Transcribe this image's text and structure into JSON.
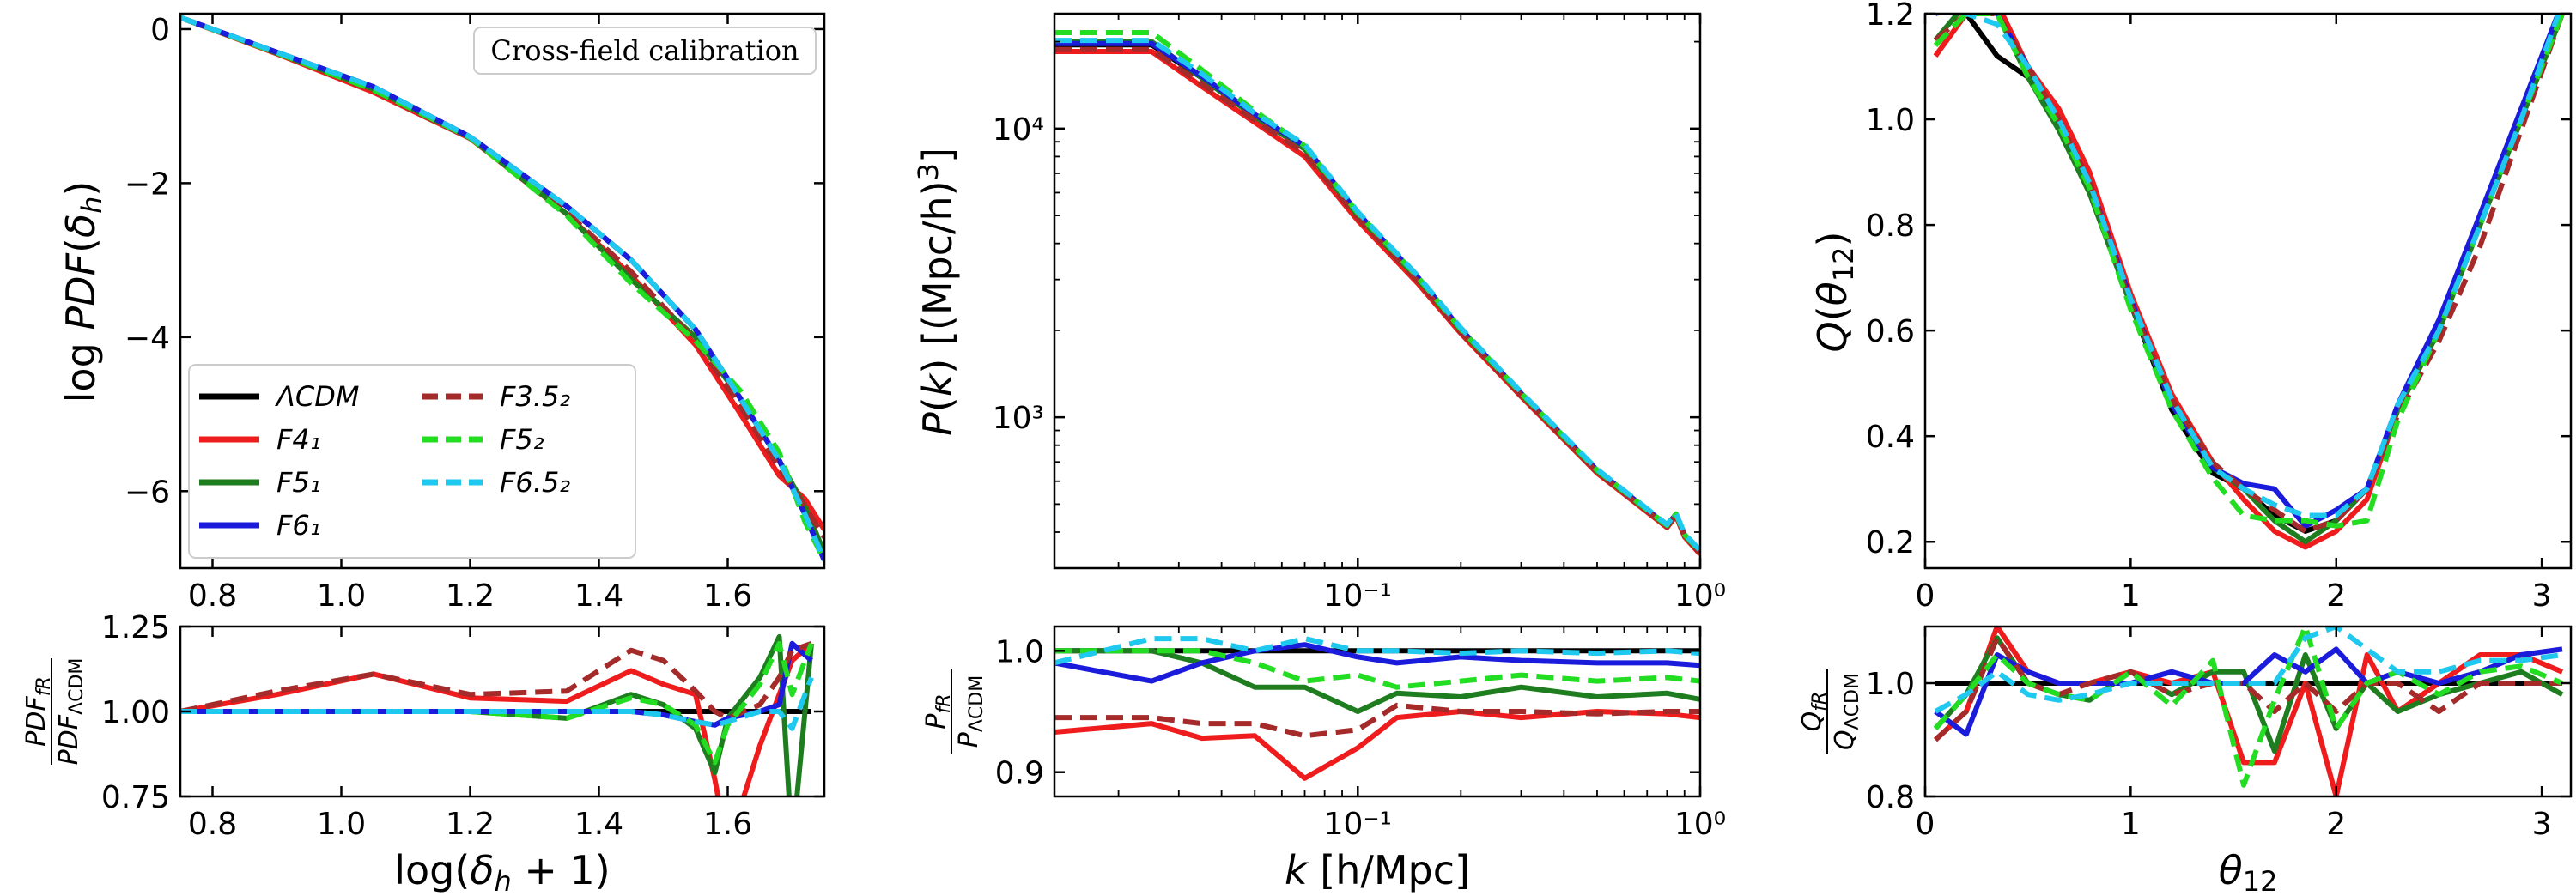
{
  "colors": {
    "LCDM": "#000000",
    "F4_1": "#ee1c1c",
    "F5_1": "#1e7d1e",
    "F6_1": "#1b1bdc",
    "F3.5_2": "#a52a2a",
    "F5_2": "#22dd22",
    "F6.5_2": "#1fc8ee"
  },
  "legend": {
    "items": [
      {
        "key": "LCDM",
        "label": "ΛCDM",
        "dash": false
      },
      {
        "key": "F4_1",
        "label": "F4₁",
        "dash": false
      },
      {
        "key": "F5_1",
        "label": "F5₁",
        "dash": false
      },
      {
        "key": "F6_1",
        "label": "F6₁",
        "dash": false
      },
      {
        "key": "F3.5_2",
        "label": "F3.5₂",
        "dash": true
      },
      {
        "key": "F5_2",
        "label": "F5₂",
        "dash": true
      },
      {
        "key": "F6.5_2",
        "label": "F6.5₂",
        "dash": true
      }
    ]
  },
  "annotation": "Cross-field calibration",
  "chart_data": [
    {
      "id": "pdf",
      "type": "line",
      "ylabel": "log PDF(δ_h)",
      "xlim": [
        0.75,
        1.75
      ],
      "ylim": [
        -7.0,
        0.2
      ],
      "xticks": [
        0.8,
        1.0,
        1.2,
        1.4,
        1.6
      ],
      "xticklabels": [
        "0.8",
        "1.0",
        "1.2",
        "1.4",
        "1.6"
      ],
      "yticks": [
        0,
        -2,
        -4,
        -6
      ],
      "yticklabels": [
        "0",
        "−2",
        "−4",
        "−6"
      ],
      "x": [
        0.75,
        0.9,
        1.05,
        1.2,
        1.35,
        1.45,
        1.55,
        1.62,
        1.68,
        1.72,
        1.75
      ],
      "series": [
        {
          "key": "LCDM",
          "values": [
            0.15,
            -0.3,
            -0.75,
            -1.4,
            -2.3,
            -3.0,
            -3.9,
            -4.8,
            -5.6,
            -6.3,
            -6.9
          ]
        },
        {
          "key": "F4_1",
          "values": [
            0.15,
            -0.32,
            -0.82,
            -1.42,
            -2.4,
            -3.2,
            -4.1,
            -5.0,
            -5.8,
            -6.1,
            -6.5
          ]
        },
        {
          "key": "F5_1",
          "values": [
            0.15,
            -0.31,
            -0.78,
            -1.41,
            -2.4,
            -3.25,
            -4.0,
            -4.8,
            -5.6,
            -6.2,
            -6.8
          ]
        },
        {
          "key": "F6_1",
          "values": [
            0.15,
            -0.3,
            -0.75,
            -1.4,
            -2.3,
            -3.0,
            -3.9,
            -4.8,
            -5.6,
            -6.3,
            -6.9
          ]
        },
        {
          "key": "F3.5_2",
          "values": [
            0.15,
            -0.31,
            -0.8,
            -1.42,
            -2.38,
            -3.15,
            -4.05,
            -4.9,
            -5.7,
            -6.2,
            -6.6
          ]
        },
        {
          "key": "F5_2",
          "values": [
            0.15,
            -0.31,
            -0.79,
            -1.41,
            -2.42,
            -3.3,
            -4.05,
            -4.7,
            -5.5,
            -6.4,
            -6.9
          ]
        },
        {
          "key": "F6.5_2",
          "values": [
            0.15,
            -0.3,
            -0.75,
            -1.4,
            -2.3,
            -3.0,
            -3.9,
            -4.8,
            -5.6,
            -6.3,
            -6.9
          ]
        }
      ]
    },
    {
      "id": "pdf_ratio",
      "type": "line",
      "ylabel": "PDF_fR / PDF_ΛCDM",
      "xlabel": "log(δ_h + 1)",
      "xlim": [
        0.75,
        1.75
      ],
      "ylim": [
        0.75,
        1.25
      ],
      "xticks": [
        0.8,
        1.0,
        1.2,
        1.4,
        1.6
      ],
      "xticklabels": [
        "0.8",
        "1.0",
        "1.2",
        "1.4",
        "1.6"
      ],
      "yticks": [
        0.75,
        1.0,
        1.25
      ],
      "yticklabels": [
        "0.75",
        "1.00",
        "1.25"
      ],
      "x": [
        0.75,
        0.9,
        1.05,
        1.2,
        1.35,
        1.45,
        1.5,
        1.55,
        1.58,
        1.6,
        1.65,
        1.68,
        1.7,
        1.73
      ],
      "series": [
        {
          "key": "LCDM",
          "values": [
            1,
            1,
            1,
            1,
            1,
            1,
            1,
            1,
            1,
            1,
            1,
            1,
            1,
            1
          ]
        },
        {
          "key": "F4_1",
          "values": [
            1.0,
            1.05,
            1.11,
            1.04,
            1.03,
            1.12,
            1.08,
            1.05,
            0.8,
            0.6,
            0.9,
            1.05,
            1.15,
            1.2
          ]
        },
        {
          "key": "F5_1",
          "values": [
            1.0,
            1.0,
            1.0,
            1.0,
            0.98,
            1.05,
            1.02,
            0.95,
            0.82,
            0.98,
            1.1,
            1.22,
            0.6,
            1.2
          ]
        },
        {
          "key": "F6_1",
          "values": [
            1.0,
            1.0,
            1.0,
            1.0,
            1.0,
            1.0,
            0.99,
            0.97,
            0.96,
            0.98,
            1.0,
            1.02,
            1.2,
            1.15
          ]
        },
        {
          "key": "F3.5_2",
          "values": [
            1.0,
            1.06,
            1.11,
            1.05,
            1.06,
            1.18,
            1.15,
            1.06,
            1.0,
            0.98,
            1.02,
            1.1,
            1.18,
            1.2
          ]
        },
        {
          "key": "F5_2",
          "values": [
            1.0,
            1.0,
            1.0,
            1.0,
            0.98,
            1.04,
            1.02,
            0.96,
            0.85,
            0.96,
            1.08,
            1.2,
            1.05,
            1.2
          ]
        },
        {
          "key": "F6.5_2",
          "values": [
            1.0,
            1.0,
            1.0,
            1.0,
            1.0,
            1.0,
            0.99,
            0.97,
            0.96,
            0.97,
            1.0,
            1.0,
            0.95,
            1.1
          ]
        }
      ]
    },
    {
      "id": "pk",
      "type": "line",
      "ylabel": "P(k) [(Mpc/h)³]",
      "xscale": "log",
      "yscale": "log",
      "xlim": [
        0.013,
        1.0
      ],
      "ylim": [
        300,
        25000
      ],
      "xticks": [
        0.1,
        1.0
      ],
      "xticklabels": [
        "10⁻¹",
        "10⁰"
      ],
      "yticks": [
        1000,
        10000
      ],
      "yticklabels": [
        "10³",
        "10⁴"
      ],
      "x": [
        0.013,
        0.025,
        0.035,
        0.05,
        0.07,
        0.1,
        0.15,
        0.2,
        0.3,
        0.5,
        0.8,
        0.85,
        0.9,
        1.0
      ],
      "series": [
        {
          "key": "LCDM",
          "values": [
            19500,
            19500,
            15000,
            11000,
            8500,
            5000,
            3000,
            2000,
            1200,
            650,
            420,
            460,
            390,
            340
          ]
        },
        {
          "key": "F4_1",
          "values": [
            18500,
            18500,
            14000,
            10500,
            8000,
            4800,
            2900,
            1950,
            1180,
            640,
            415,
            455,
            385,
            335
          ]
        },
        {
          "key": "F5_1",
          "values": [
            20000,
            20000,
            15000,
            11000,
            8500,
            5000,
            3000,
            2000,
            1200,
            650,
            420,
            460,
            390,
            340
          ]
        },
        {
          "key": "F6_1",
          "values": [
            19700,
            19700,
            15200,
            11200,
            8700,
            5100,
            3050,
            2020,
            1210,
            655,
            422,
            462,
            392,
            342
          ]
        },
        {
          "key": "F3.5_2",
          "values": [
            18800,
            18800,
            14300,
            10700,
            8200,
            4900,
            2950,
            1970,
            1190,
            645,
            418,
            458,
            388,
            338
          ]
        },
        {
          "key": "F5_2",
          "values": [
            21500,
            21500,
            16000,
            11500,
            8700,
            5100,
            3050,
            2020,
            1210,
            655,
            422,
            462,
            392,
            342
          ]
        },
        {
          "key": "F6.5_2",
          "values": [
            20200,
            20200,
            15500,
            11300,
            8800,
            5150,
            3080,
            2040,
            1220,
            660,
            425,
            465,
            395,
            345
          ]
        }
      ]
    },
    {
      "id": "pk_ratio",
      "type": "line",
      "ylabel": "P_fR / P_ΛCDM",
      "xlabel": "k [h/Mpc]",
      "xscale": "log",
      "xlim": [
        0.013,
        1.0
      ],
      "ylim": [
        0.88,
        1.02
      ],
      "xticks": [
        0.1,
        1.0
      ],
      "xticklabels": [
        "10⁻¹",
        "10⁰"
      ],
      "yticks": [
        0.9,
        1.0
      ],
      "yticklabels": [
        "0.9",
        "1.0"
      ],
      "x": [
        0.013,
        0.025,
        0.035,
        0.05,
        0.07,
        0.1,
        0.13,
        0.2,
        0.3,
        0.5,
        0.8,
        1.0
      ],
      "series": [
        {
          "key": "LCDM",
          "values": [
            1,
            1,
            1,
            1,
            1,
            1,
            1,
            1,
            1,
            1,
            1,
            1
          ]
        },
        {
          "key": "F4_1",
          "values": [
            0.933,
            0.94,
            0.928,
            0.93,
            0.895,
            0.92,
            0.945,
            0.95,
            0.945,
            0.95,
            0.948,
            0.945
          ]
        },
        {
          "key": "F5_1",
          "values": [
            1.0,
            1.0,
            0.99,
            0.97,
            0.97,
            0.95,
            0.965,
            0.962,
            0.97,
            0.962,
            0.965,
            0.96
          ]
        },
        {
          "key": "F6_1",
          "values": [
            0.99,
            0.975,
            0.99,
            1.0,
            1.005,
            0.995,
            0.99,
            0.995,
            0.992,
            0.99,
            0.99,
            0.988
          ]
        },
        {
          "key": "F3.5_2",
          "values": [
            0.945,
            0.945,
            0.94,
            0.94,
            0.93,
            0.935,
            0.955,
            0.95,
            0.95,
            0.948,
            0.95,
            0.95
          ]
        },
        {
          "key": "F5_2",
          "values": [
            1.0,
            1.0,
            1.0,
            0.99,
            0.975,
            0.98,
            0.97,
            0.975,
            0.98,
            0.975,
            0.978,
            0.975
          ]
        },
        {
          "key": "F6.5_2",
          "values": [
            0.99,
            1.01,
            1.01,
            1.0,
            1.01,
            1.0,
            1.0,
            0.998,
            1.0,
            0.998,
            1.0,
            0.998
          ]
        }
      ]
    },
    {
      "id": "q",
      "type": "line",
      "ylabel": "Q(θ₁₂)",
      "xlim": [
        0.0,
        3.14159
      ],
      "ylim": [
        0.15,
        1.2
      ],
      "xticks": [
        0,
        1,
        2,
        3
      ],
      "xticklabels": [
        "0",
        "1",
        "2",
        "3"
      ],
      "yticks": [
        0.2,
        0.4,
        0.6,
        0.8,
        1.0,
        1.2
      ],
      "yticklabels": [
        "0.2",
        "0.4",
        "0.6",
        "0.8",
        "1.0",
        "1.2"
      ],
      "x": [
        0.05,
        0.2,
        0.35,
        0.5,
        0.65,
        0.8,
        1.0,
        1.2,
        1.4,
        1.55,
        1.7,
        1.85,
        2.0,
        2.15,
        2.3,
        2.5,
        2.7,
        2.9,
        3.1
      ],
      "series": [
        {
          "key": "LCDM",
          "values": [
            1.22,
            1.2,
            1.12,
            1.08,
            1.0,
            0.88,
            0.65,
            0.45,
            0.33,
            0.3,
            0.25,
            0.22,
            0.24,
            0.3,
            0.45,
            0.6,
            0.8,
            1.0,
            1.22
          ]
        },
        {
          "key": "F4_1",
          "values": [
            1.12,
            1.2,
            1.22,
            1.1,
            1.02,
            0.9,
            0.67,
            0.48,
            0.35,
            0.28,
            0.22,
            0.19,
            0.22,
            0.28,
            0.45,
            0.6,
            0.8,
            1.0,
            1.2
          ]
        },
        {
          "key": "F5_1",
          "values": [
            1.15,
            1.22,
            1.2,
            1.08,
            0.98,
            0.86,
            0.65,
            0.46,
            0.34,
            0.3,
            0.24,
            0.2,
            0.24,
            0.3,
            0.45,
            0.6,
            0.8,
            1.0,
            1.2
          ]
        },
        {
          "key": "F6_1",
          "values": [
            1.2,
            1.22,
            1.2,
            1.1,
            1.0,
            0.88,
            0.66,
            0.46,
            0.34,
            0.31,
            0.3,
            0.23,
            0.26,
            0.3,
            0.46,
            0.62,
            0.82,
            1.02,
            1.22
          ]
        },
        {
          "key": "F3.5_2",
          "values": [
            1.15,
            1.2,
            1.2,
            1.1,
            1.0,
            0.88,
            0.65,
            0.47,
            0.35,
            0.3,
            0.26,
            0.22,
            0.24,
            0.3,
            0.44,
            0.58,
            0.76,
            0.98,
            1.2
          ]
        },
        {
          "key": "F5_2",
          "values": [
            1.14,
            1.2,
            1.2,
            1.08,
            0.99,
            0.87,
            0.64,
            0.45,
            0.32,
            0.25,
            0.24,
            0.24,
            0.23,
            0.24,
            0.43,
            0.6,
            0.8,
            1.0,
            1.2
          ]
        },
        {
          "key": "F6.5_2",
          "values": [
            1.22,
            1.2,
            1.18,
            1.1,
            1.0,
            0.88,
            0.66,
            0.47,
            0.34,
            0.3,
            0.27,
            0.25,
            0.25,
            0.3,
            0.46,
            0.6,
            0.8,
            1.0,
            1.22
          ]
        }
      ]
    },
    {
      "id": "q_ratio",
      "type": "line",
      "ylabel": "Q_fR / Q_ΛCDM",
      "xlabel": "θ₁₂",
      "xlim": [
        0.0,
        3.14159
      ],
      "ylim": [
        0.8,
        1.1
      ],
      "xticks": [
        0,
        1,
        2,
        3
      ],
      "xticklabels": [
        "0",
        "1",
        "2",
        "3"
      ],
      "yticks": [
        0.8,
        1.0
      ],
      "yticklabels": [
        "0.8",
        "1.0"
      ],
      "x": [
        0.05,
        0.2,
        0.35,
        0.5,
        0.65,
        0.8,
        1.0,
        1.2,
        1.4,
        1.55,
        1.7,
        1.85,
        2.0,
        2.15,
        2.3,
        2.5,
        2.7,
        2.9,
        3.1
      ],
      "series": [
        {
          "key": "LCDM",
          "values": [
            1,
            1,
            1,
            1,
            1,
            1,
            1,
            1,
            1,
            1,
            1,
            1,
            1,
            1,
            1,
            1,
            1,
            1,
            1
          ]
        },
        {
          "key": "F4_1",
          "values": [
            0.9,
            0.95,
            1.1,
            1.02,
            1.0,
            1.0,
            1.02,
            1.0,
            1.02,
            0.86,
            0.86,
            1.0,
            0.8,
            1.05,
            0.95,
            1.0,
            1.05,
            1.05,
            1.02
          ]
        },
        {
          "key": "F5_1",
          "values": [
            0.92,
            0.98,
            1.08,
            1.0,
            0.98,
            0.97,
            1.02,
            0.98,
            1.02,
            1.02,
            0.88,
            1.05,
            0.92,
            1.0,
            0.95,
            0.98,
            1.0,
            1.02,
            0.98
          ]
        },
        {
          "key": "F6_1",
          "values": [
            0.95,
            0.91,
            1.05,
            1.02,
            1.0,
            1.0,
            1.0,
            1.02,
            1.0,
            1.0,
            1.05,
            1.02,
            1.06,
            1.0,
            1.02,
            1.0,
            1.02,
            1.05,
            1.06
          ]
        },
        {
          "key": "F3.5_2",
          "values": [
            0.9,
            0.95,
            1.08,
            1.0,
            0.98,
            1.0,
            1.02,
            0.98,
            1.0,
            1.0,
            0.95,
            1.0,
            0.95,
            1.0,
            1.0,
            0.95,
            1.0,
            1.0,
            1.0
          ]
        },
        {
          "key": "F5_2",
          "values": [
            0.92,
            0.98,
            1.05,
            1.0,
            0.98,
            0.97,
            1.02,
            0.96,
            1.04,
            0.82,
            0.97,
            1.1,
            0.92,
            1.0,
            1.02,
            0.98,
            1.02,
            1.03,
            1.0
          ]
        },
        {
          "key": "F6.5_2",
          "values": [
            0.95,
            0.98,
            1.02,
            0.98,
            0.97,
            0.98,
            1.0,
            1.0,
            1.0,
            1.0,
            1.0,
            1.08,
            1.1,
            1.06,
            1.02,
            1.02,
            1.04,
            1.04,
            1.05
          ]
        }
      ]
    }
  ]
}
